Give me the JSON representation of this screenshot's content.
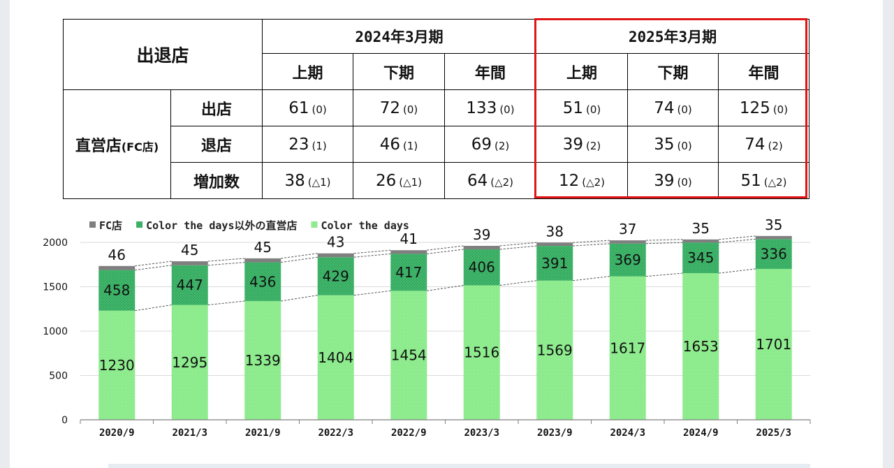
{
  "table": {
    "header_label": "出退店",
    "period_groups": [
      "2024年3月期",
      "2025年3月期"
    ],
    "sub_periods": [
      "上期",
      "下期",
      "年間",
      "上期",
      "下期",
      "年間"
    ],
    "row_group_label": "直営店",
    "row_group_suffix": "(FC店)",
    "rows": [
      {
        "label": "出店",
        "cells": [
          {
            "v": "61",
            "p": "(0)"
          },
          {
            "v": "72",
            "p": "(0)"
          },
          {
            "v": "133",
            "p": "(0)"
          },
          {
            "v": "51",
            "p": "(0)"
          },
          {
            "v": "74",
            "p": "(0)"
          },
          {
            "v": "125",
            "p": "(0)"
          }
        ]
      },
      {
        "label": "退店",
        "cells": [
          {
            "v": "23",
            "p": "(1)"
          },
          {
            "v": "46",
            "p": "(1)"
          },
          {
            "v": "69",
            "p": "(2)"
          },
          {
            "v": "39",
            "p": "(2)"
          },
          {
            "v": "35",
            "p": "(0)"
          },
          {
            "v": "74",
            "p": "(2)"
          }
        ]
      },
      {
        "label": "増加数",
        "cells": [
          {
            "v": "38",
            "p": "(△1)"
          },
          {
            "v": "26",
            "p": "(△1)"
          },
          {
            "v": "64",
            "p": "(△2)"
          },
          {
            "v": "12",
            "p": "(△2)"
          },
          {
            "v": "39",
            "p": "(0)"
          },
          {
            "v": "51",
            "p": "(△2)"
          }
        ]
      }
    ]
  },
  "chart_data": {
    "type": "bar",
    "stacked": true,
    "categories": [
      "2020/9",
      "2021/3",
      "2021/9",
      "2022/3",
      "2022/9",
      "2023/3",
      "2023/9",
      "2024/3",
      "2024/9",
      "2025/3"
    ],
    "series": [
      {
        "name": "Color the days",
        "color": "#90ee90",
        "values": [
          1230,
          1295,
          1339,
          1404,
          1454,
          1516,
          1569,
          1617,
          1653,
          1701
        ]
      },
      {
        "name": "Color the days以外の直営店",
        "color": "#3fb56a",
        "values": [
          458,
          447,
          436,
          429,
          417,
          406,
          391,
          369,
          345,
          336
        ]
      },
      {
        "name": "FC店",
        "color": "#7f7f7f",
        "values": [
          46,
          45,
          45,
          43,
          41,
          39,
          38,
          37,
          35,
          35
        ]
      }
    ],
    "legend_order": [
      "FC店",
      "Color the days以外の直営店",
      "Color the days"
    ],
    "legend_position": "top-left",
    "ylim": [
      0,
      2000
    ],
    "yticks": [
      0,
      500,
      1000,
      1500,
      2000
    ],
    "grid": true,
    "xlabel": "",
    "ylabel": "",
    "title": ""
  }
}
